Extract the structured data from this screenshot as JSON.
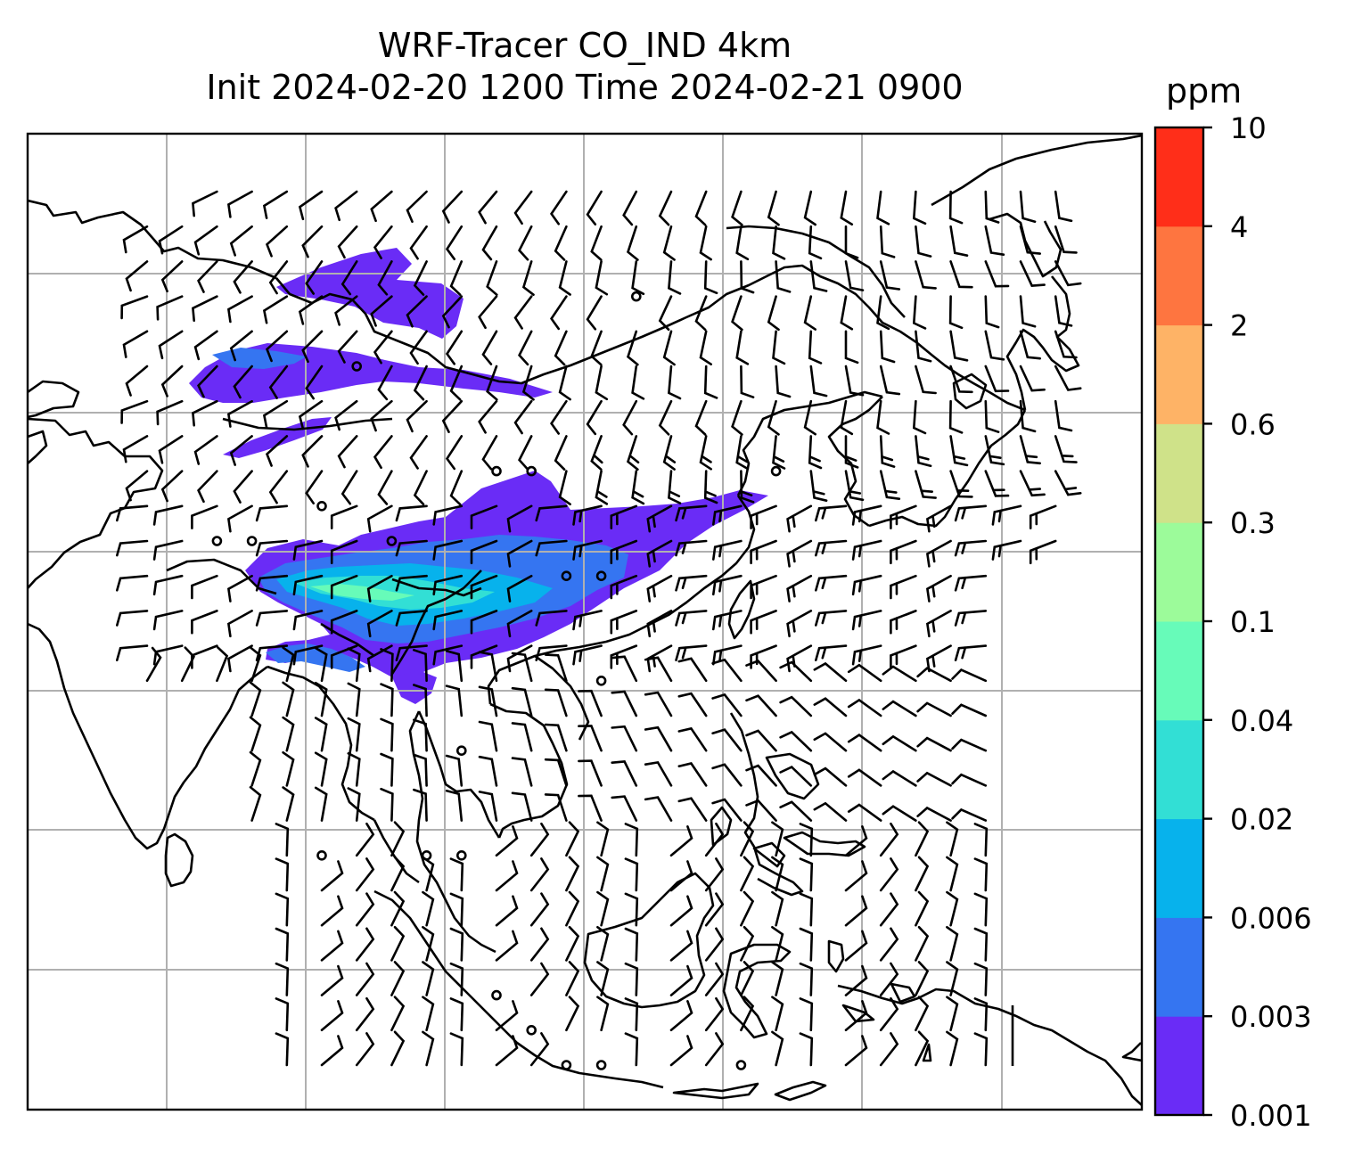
{
  "title": {
    "line1": "WRF-Tracer CO_IND 4km",
    "line2": "Init 2024-02-20 1200 Time 2024-02-21 0900"
  },
  "colorbar": {
    "unit": "ppm",
    "levels": [
      "0.001",
      "0.003",
      "0.006",
      "0.02",
      "0.04",
      "0.1",
      "0.3",
      "0.6",
      "2",
      "4",
      "10"
    ],
    "colors": [
      "#6a2cf6",
      "#3575f1",
      "#07b2ec",
      "#32dfd5",
      "#67fbb9",
      "#9cfb9a",
      "#cfe289",
      "#feb366",
      "#fe7540",
      "#ff2e19"
    ]
  },
  "map": {
    "gridline_color": "#b0b0b0",
    "coastline_color": "#000000"
  }
}
